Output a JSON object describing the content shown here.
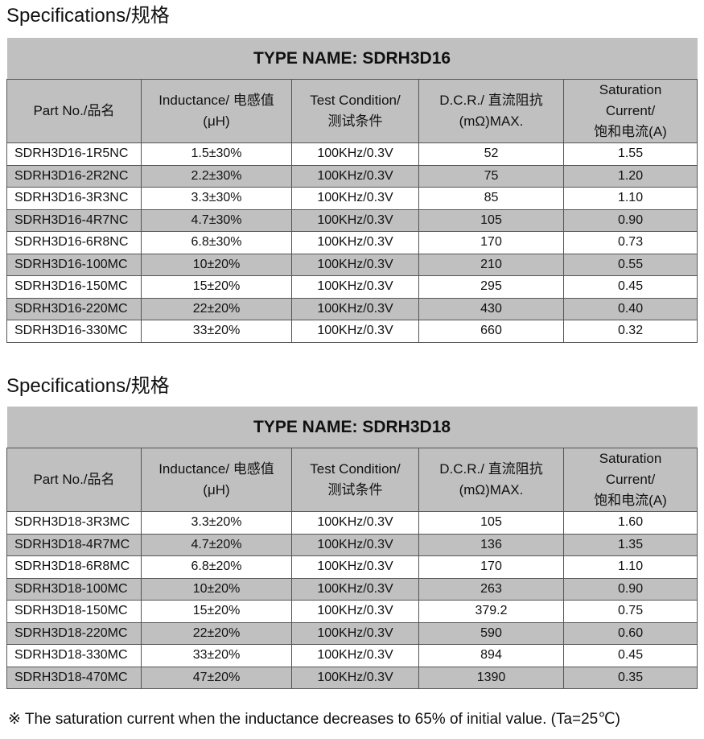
{
  "sections": [
    {
      "heading": "Specifications/规格",
      "type_name": "TYPE NAME: SDRH3D16",
      "headers": {
        "part": "Part No./品名",
        "ind1": "Inductance/  电感值",
        "ind2": "(μH)",
        "test1": "Test Condition/",
        "test2": "测试条件",
        "dcr1": "D.C.R./   直流阻抗",
        "dcr2": "(mΩ)MAX.",
        "sat1": "Saturation",
        "sat2": "Current/",
        "sat3": "饱和电流(A)"
      },
      "rows": [
        [
          "SDRH3D16-1R5NC",
          "1.5±30%",
          "100KHz/0.3V",
          "52",
          "1.55"
        ],
        [
          "SDRH3D16-2R2NC",
          "2.2±30%",
          "100KHz/0.3V",
          "75",
          "1.20"
        ],
        [
          "SDRH3D16-3R3NC",
          "3.3±30%",
          "100KHz/0.3V",
          "85",
          "1.10"
        ],
        [
          "SDRH3D16-4R7NC",
          "4.7±30%",
          "100KHz/0.3V",
          "105",
          "0.90"
        ],
        [
          "SDRH3D16-6R8NC",
          "6.8±30%",
          "100KHz/0.3V",
          "170",
          "0.73"
        ],
        [
          "SDRH3D16-100MC",
          "10±20%",
          "100KHz/0.3V",
          "210",
          "0.55"
        ],
        [
          "SDRH3D16-150MC",
          "15±20%",
          "100KHz/0.3V",
          "295",
          "0.45"
        ],
        [
          "SDRH3D16-220MC",
          "22±20%",
          "100KHz/0.3V",
          "430",
          "0.40"
        ],
        [
          "SDRH3D16-330MC",
          "33±20%",
          "100KHz/0.3V",
          "660",
          "0.32"
        ]
      ]
    },
    {
      "heading": "Specifications/规格",
      "type_name": "TYPE NAME: SDRH3D18",
      "headers": {
        "part": "Part No./品名",
        "ind1": "Inductance/  电感值",
        "ind2": "(μH)",
        "test1": "Test Condition/",
        "test2": "测试条件",
        "dcr1": "D.C.R./   直流阻抗",
        "dcr2": "(mΩ)MAX.",
        "sat1": "Saturation",
        "sat2": "Current/",
        "sat3": "饱和电流(A)"
      },
      "rows": [
        [
          "SDRH3D18-3R3MC",
          "3.3±20%",
          "100KHz/0.3V",
          "105",
          "1.60"
        ],
        [
          "SDRH3D18-4R7MC",
          "4.7±20%",
          "100KHz/0.3V",
          "136",
          "1.35"
        ],
        [
          "SDRH3D18-6R8MC",
          "6.8±20%",
          "100KHz/0.3V",
          "170",
          "1.10"
        ],
        [
          "SDRH3D18-100MC",
          "10±20%",
          "100KHz/0.3V",
          "263",
          "0.90"
        ],
        [
          "SDRH3D18-150MC",
          "15±20%",
          "100KHz/0.3V",
          "379.2",
          "0.75"
        ],
        [
          "SDRH3D18-220MC",
          "22±20%",
          "100KHz/0.3V",
          "590",
          "0.60"
        ],
        [
          "SDRH3D18-330MC",
          "33±20%",
          "100KHz/0.3V",
          "894",
          "0.45"
        ],
        [
          "SDRH3D18-470MC",
          "47±20%",
          "100KHz/0.3V",
          "1390",
          "0.35"
        ]
      ]
    }
  ],
  "footnote": "※  The saturation current when the inductance decreases to 65% of initial value. (Ta=25℃)",
  "colors": {
    "shade": "#c0c0c0"
  }
}
